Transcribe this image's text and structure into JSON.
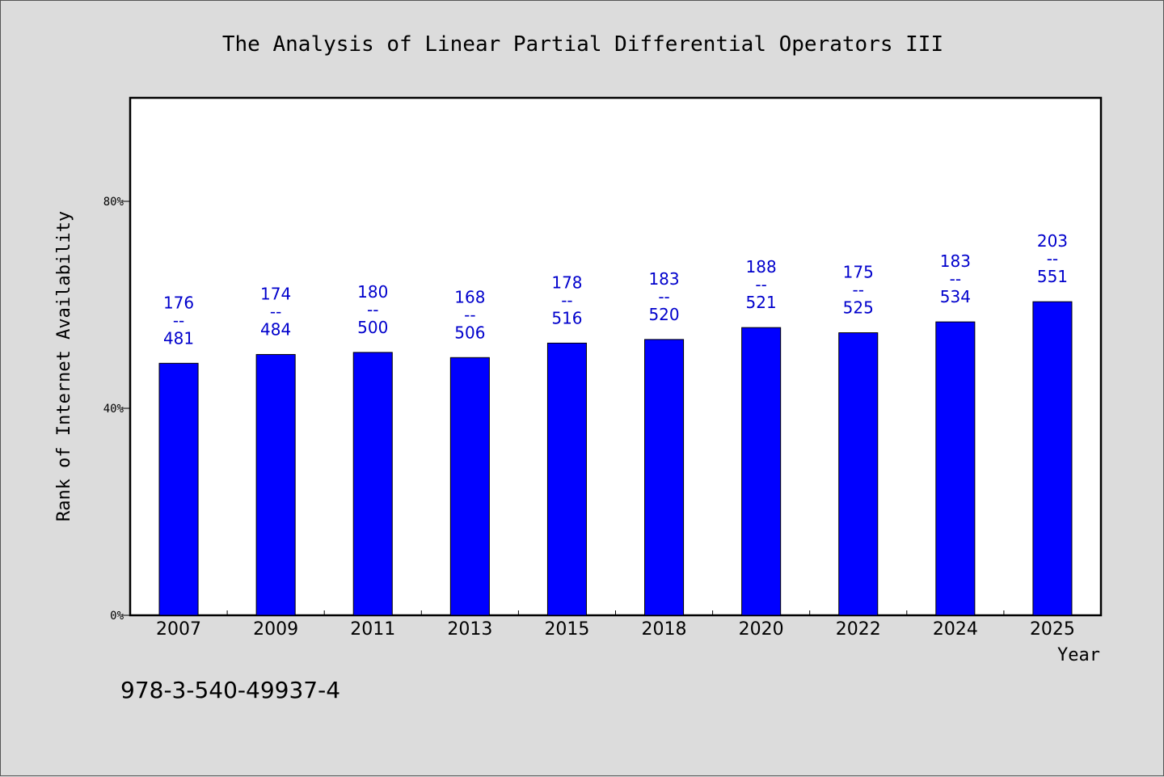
{
  "chart_data": {
    "type": "bar",
    "title": "The Analysis of Linear Partial Differential Operators III",
    "xlabel": "Year",
    "ylabel": "Rank of Internet Availability",
    "yticks": [
      "0%",
      "40%",
      "80%"
    ],
    "ylim": [
      0,
      100
    ],
    "bar_color": "#0000ff",
    "label_color": "#0000cc",
    "grid": false,
    "categories": [
      "2007",
      "2009",
      "2011",
      "2013",
      "2015",
      "2018",
      "2020",
      "2022",
      "2024",
      "2025"
    ],
    "values": [
      48.7,
      50.4,
      50.8,
      49.8,
      52.6,
      53.3,
      55.6,
      54.6,
      56.7,
      60.6
    ],
    "data_labels": [
      [
        "176",
        "--",
        "481"
      ],
      [
        "174",
        "--",
        "484"
      ],
      [
        "180",
        "--",
        "500"
      ],
      [
        "168",
        "--",
        "506"
      ],
      [
        "178",
        "--",
        "516"
      ],
      [
        "183",
        "--",
        "520"
      ],
      [
        "188",
        "--",
        "521"
      ],
      [
        "175",
        "--",
        "525"
      ],
      [
        "183",
        "--",
        "534"
      ],
      [
        "203",
        "--",
        "551"
      ]
    ]
  },
  "footer": {
    "isbn": "978-3-540-49937-4"
  }
}
